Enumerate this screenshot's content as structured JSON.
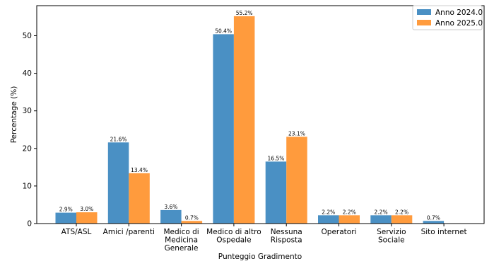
{
  "chart_data": {
    "type": "bar",
    "categories": [
      "ATS/ASL",
      "Amici /parenti",
      "Medico di\nMedicina\nGenerale",
      "Medico di altro\nOspedale",
      "Nessuna\nRisposta",
      "Operatori",
      "Servizio\nSociale",
      "Sito internet"
    ],
    "series": [
      {
        "name": "Anno 2024.0",
        "color": "#4a90c4",
        "values": [
          2.9,
          21.6,
          3.6,
          50.4,
          16.5,
          2.2,
          2.2,
          0.7
        ],
        "labels": [
          "2.9%",
          "21.6%",
          "3.6%",
          "50.4%",
          "16.5%",
          "2.2%",
          "2.2%",
          "0.7%"
        ]
      },
      {
        "name": "Anno 2025.0",
        "color": "#ff9b3d",
        "values": [
          3.0,
          13.4,
          0.7,
          55.2,
          23.1,
          2.2,
          2.2,
          null
        ],
        "labels": [
          "3.0%",
          "13.4%",
          "0.7%",
          "55.2%",
          "23.1%",
          "2.2%",
          "2.2%",
          null
        ]
      }
    ],
    "xlabel": "Punteggio Gradimento",
    "ylabel": "Percentage (%)",
    "ylim": [
      0,
      58
    ],
    "yticks": [
      0,
      10,
      20,
      30,
      40,
      50
    ],
    "grid": false,
    "legend_position": "top-right"
  }
}
